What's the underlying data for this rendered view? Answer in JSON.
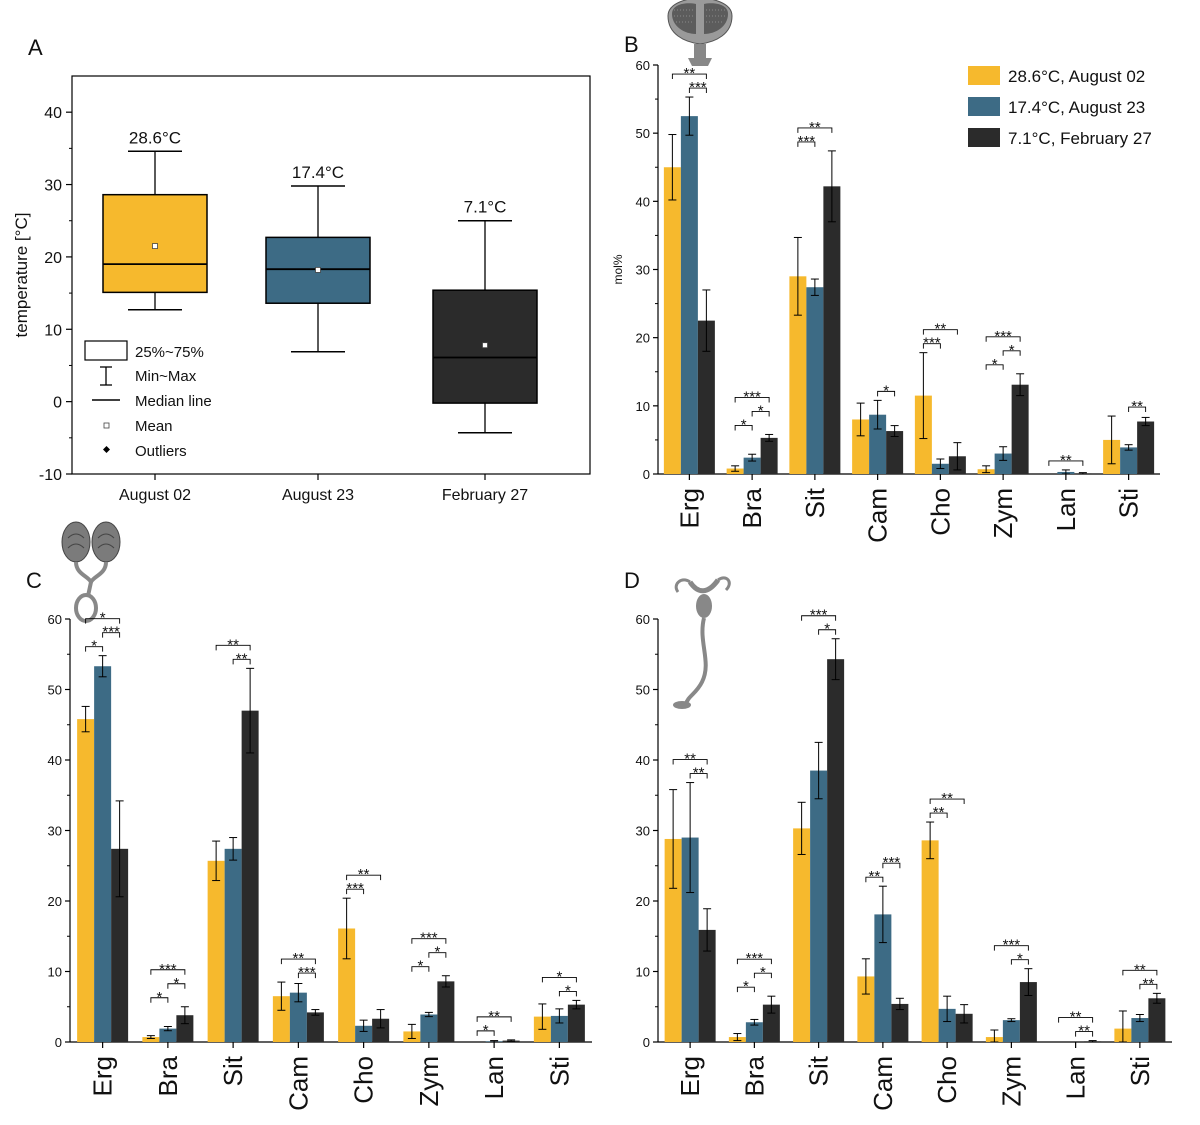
{
  "colors": {
    "c1": "#f6b92d",
    "c2": "#3d6b85",
    "c3": "#2b2b2b"
  },
  "chart_data": [
    {
      "panel": "A",
      "type": "box",
      "ylabel": "temperature [°C]",
      "ylim": [
        -10,
        45
      ],
      "yticks": [
        "-10",
        "0",
        "10",
        "20",
        "30",
        "40"
      ],
      "categories": [
        "August 02",
        "August 23",
        "February 27"
      ],
      "boxes": [
        {
          "label": "28.6°C",
          "min": 12.7,
          "q1": 15.1,
          "median": 19.0,
          "q3": 28.6,
          "max": 34.6,
          "mean": 21.5
        },
        {
          "label": "17.4°C",
          "min": 6.9,
          "q1": 13.6,
          "median": 18.3,
          "q3": 22.7,
          "max": 29.8,
          "mean": 18.2
        },
        {
          "label": "7.1°C",
          "min": -4.3,
          "q1": -0.2,
          "median": 6.1,
          "q3": 15.4,
          "max": 25.0,
          "mean": 7.8
        }
      ],
      "legend": [
        "25%~75%",
        "Min~Max",
        "Median line",
        "Mean",
        "Outliers"
      ]
    },
    {
      "panel": "B",
      "type": "bar",
      "ylabel": "mol%",
      "ylim": [
        0,
        60
      ],
      "yticks": [
        "0",
        "10",
        "20",
        "30",
        "40",
        "50",
        "60"
      ],
      "categories": [
        "Erg",
        "Bra",
        "Sit",
        "Cam",
        "Cho",
        "Zym",
        "Lan",
        "Sti"
      ],
      "legend": [
        "28.6°C, August 02",
        "17.4°C, August 23",
        "7.1°C, February 27"
      ],
      "series": [
        {
          "name": "28.6°C, August 02",
          "values": [
            45.0,
            0.8,
            29.0,
            8.0,
            11.5,
            0.7,
            0.0,
            5.0
          ],
          "errors": [
            4.8,
            0.4,
            5.7,
            2.4,
            6.3,
            0.5,
            0.0,
            3.5
          ]
        },
        {
          "name": "17.4°C, August 23",
          "values": [
            52.5,
            2.4,
            27.4,
            8.7,
            1.5,
            3.0,
            0.3,
            3.9
          ],
          "errors": [
            2.8,
            0.5,
            1.2,
            2.1,
            0.7,
            1.0,
            0.3,
            0.4
          ]
        },
        {
          "name": "7.1°C, February 27",
          "values": [
            22.5,
            5.3,
            42.2,
            6.3,
            2.6,
            13.1,
            0.1,
            7.7
          ],
          "errors": [
            4.5,
            0.5,
            5.2,
            0.8,
            2.0,
            1.6,
            0.1,
            0.6
          ]
        }
      ],
      "significance": [
        {
          "cat": 0,
          "pairs": [
            [
              0,
              2,
              "**"
            ],
            [
              1,
              2,
              "***"
            ]
          ]
        },
        {
          "cat": 1,
          "pairs": [
            [
              0,
              2,
              "***"
            ],
            [
              0,
              1,
              "*"
            ],
            [
              1,
              2,
              "*"
            ]
          ]
        },
        {
          "cat": 2,
          "pairs": [
            [
              0,
              2,
              "**"
            ],
            [
              0,
              1,
              "***"
            ]
          ]
        },
        {
          "cat": 3,
          "pairs": [
            [
              1,
              2,
              "*"
            ]
          ]
        },
        {
          "cat": 4,
          "pairs": [
            [
              0,
              2,
              "**"
            ],
            [
              0,
              1,
              "***"
            ]
          ]
        },
        {
          "cat": 5,
          "pairs": [
            [
              0,
              2,
              "***"
            ],
            [
              0,
              1,
              "*"
            ],
            [
              1,
              2,
              "*"
            ]
          ]
        },
        {
          "cat": 6,
          "pairs": [
            [
              0,
              2,
              "**"
            ]
          ]
        },
        {
          "cat": 7,
          "pairs": [
            [
              1,
              2,
              "**"
            ]
          ]
        }
      ]
    },
    {
      "panel": "C",
      "type": "bar",
      "ylim": [
        0,
        60
      ],
      "yticks": [
        "0",
        "10",
        "20",
        "30",
        "40",
        "50",
        "60"
      ],
      "categories": [
        "Erg",
        "Bra",
        "Sit",
        "Cam",
        "Cho",
        "Zym",
        "Lan",
        "Sti"
      ],
      "series": [
        {
          "name": "28.6°C, August 02",
          "values": [
            45.8,
            0.7,
            25.7,
            6.5,
            16.1,
            1.5,
            0.0,
            3.6
          ],
          "errors": [
            1.8,
            0.2,
            2.8,
            2.0,
            4.3,
            1.0,
            0.0,
            1.8
          ]
        },
        {
          "name": "17.4°C, August 23",
          "values": [
            53.3,
            1.9,
            27.4,
            7.0,
            2.3,
            3.9,
            0.1,
            3.7
          ],
          "errors": [
            1.5,
            0.3,
            1.6,
            1.3,
            0.8,
            0.3,
            0.1,
            1.0
          ]
        },
        {
          "name": "7.1°C, February 27",
          "values": [
            27.4,
            3.8,
            47.0,
            4.2,
            3.3,
            8.6,
            0.2,
            5.3
          ],
          "errors": [
            6.8,
            1.2,
            6.0,
            0.4,
            1.3,
            0.8,
            0.1,
            0.6
          ]
        }
      ],
      "significance": [
        {
          "cat": 0,
          "pairs": [
            [
              0,
              2,
              "*"
            ],
            [
              0,
              1,
              "*"
            ],
            [
              1,
              2,
              "***"
            ]
          ]
        },
        {
          "cat": 1,
          "pairs": [
            [
              0,
              2,
              "***"
            ],
            [
              0,
              1,
              "*"
            ],
            [
              1,
              2,
              "*"
            ]
          ]
        },
        {
          "cat": 2,
          "pairs": [
            [
              0,
              2,
              "**"
            ],
            [
              1,
              2,
              "**"
            ]
          ]
        },
        {
          "cat": 3,
          "pairs": [
            [
              0,
              2,
              "**"
            ],
            [
              1,
              2,
              "***"
            ]
          ]
        },
        {
          "cat": 4,
          "pairs": [
            [
              0,
              2,
              "**"
            ],
            [
              0,
              1,
              "***"
            ]
          ]
        },
        {
          "cat": 5,
          "pairs": [
            [
              0,
              2,
              "***"
            ],
            [
              0,
              1,
              "*"
            ],
            [
              1,
              2,
              "*"
            ]
          ]
        },
        {
          "cat": 6,
          "pairs": [
            [
              0,
              2,
              "**"
            ],
            [
              0,
              1,
              "*"
            ]
          ]
        },
        {
          "cat": 7,
          "pairs": [
            [
              0,
              2,
              "*"
            ],
            [
              1,
              2,
              "*"
            ]
          ]
        }
      ]
    },
    {
      "panel": "D",
      "type": "bar",
      "ylim": [
        0,
        60
      ],
      "yticks": [
        "0",
        "10",
        "20",
        "30",
        "40",
        "50",
        "60"
      ],
      "categories": [
        "Erg",
        "Bra",
        "Sit",
        "Cam",
        "Cho",
        "Zym",
        "Lan",
        "Sti"
      ],
      "series": [
        {
          "name": "28.6°C, August 02",
          "values": [
            28.8,
            0.7,
            30.3,
            9.3,
            28.6,
            0.7,
            0.0,
            1.9
          ],
          "errors": [
            7.0,
            0.5,
            3.7,
            2.5,
            2.6,
            1.0,
            0.0,
            2.5
          ]
        },
        {
          "name": "17.4°C, August 23",
          "values": [
            29.0,
            2.8,
            38.5,
            18.1,
            4.7,
            3.1,
            0.0,
            3.4
          ],
          "errors": [
            7.8,
            0.4,
            4.0,
            4.0,
            1.8,
            0.2,
            0.0,
            0.5
          ]
        },
        {
          "name": "7.1°C, February 27",
          "values": [
            15.9,
            5.3,
            54.3,
            5.4,
            4.0,
            8.5,
            0.1,
            6.2
          ],
          "errors": [
            3.0,
            1.2,
            2.9,
            0.8,
            1.3,
            1.9,
            0.1,
            0.7
          ]
        }
      ],
      "significance": [
        {
          "cat": 0,
          "pairs": [
            [
              0,
              2,
              "**"
            ],
            [
              1,
              2,
              "**"
            ]
          ]
        },
        {
          "cat": 1,
          "pairs": [
            [
              0,
              2,
              "***"
            ],
            [
              0,
              1,
              "*"
            ],
            [
              1,
              2,
              "*"
            ]
          ]
        },
        {
          "cat": 2,
          "pairs": [
            [
              0,
              2,
              "***"
            ],
            [
              1,
              2,
              "*"
            ]
          ]
        },
        {
          "cat": 3,
          "pairs": [
            [
              0,
              1,
              "**"
            ],
            [
              1,
              2,
              "***"
            ]
          ]
        },
        {
          "cat": 4,
          "pairs": [
            [
              0,
              2,
              "**"
            ],
            [
              0,
              1,
              "**"
            ]
          ]
        },
        {
          "cat": 5,
          "pairs": [
            [
              0,
              2,
              "***"
            ],
            [
              1,
              2,
              "*"
            ]
          ]
        },
        {
          "cat": 6,
          "pairs": [
            [
              0,
              2,
              "**"
            ],
            [
              1,
              2,
              "**"
            ]
          ]
        },
        {
          "cat": 7,
          "pairs": [
            [
              0,
              2,
              "**"
            ],
            [
              1,
              2,
              "**"
            ]
          ]
        }
      ]
    }
  ]
}
